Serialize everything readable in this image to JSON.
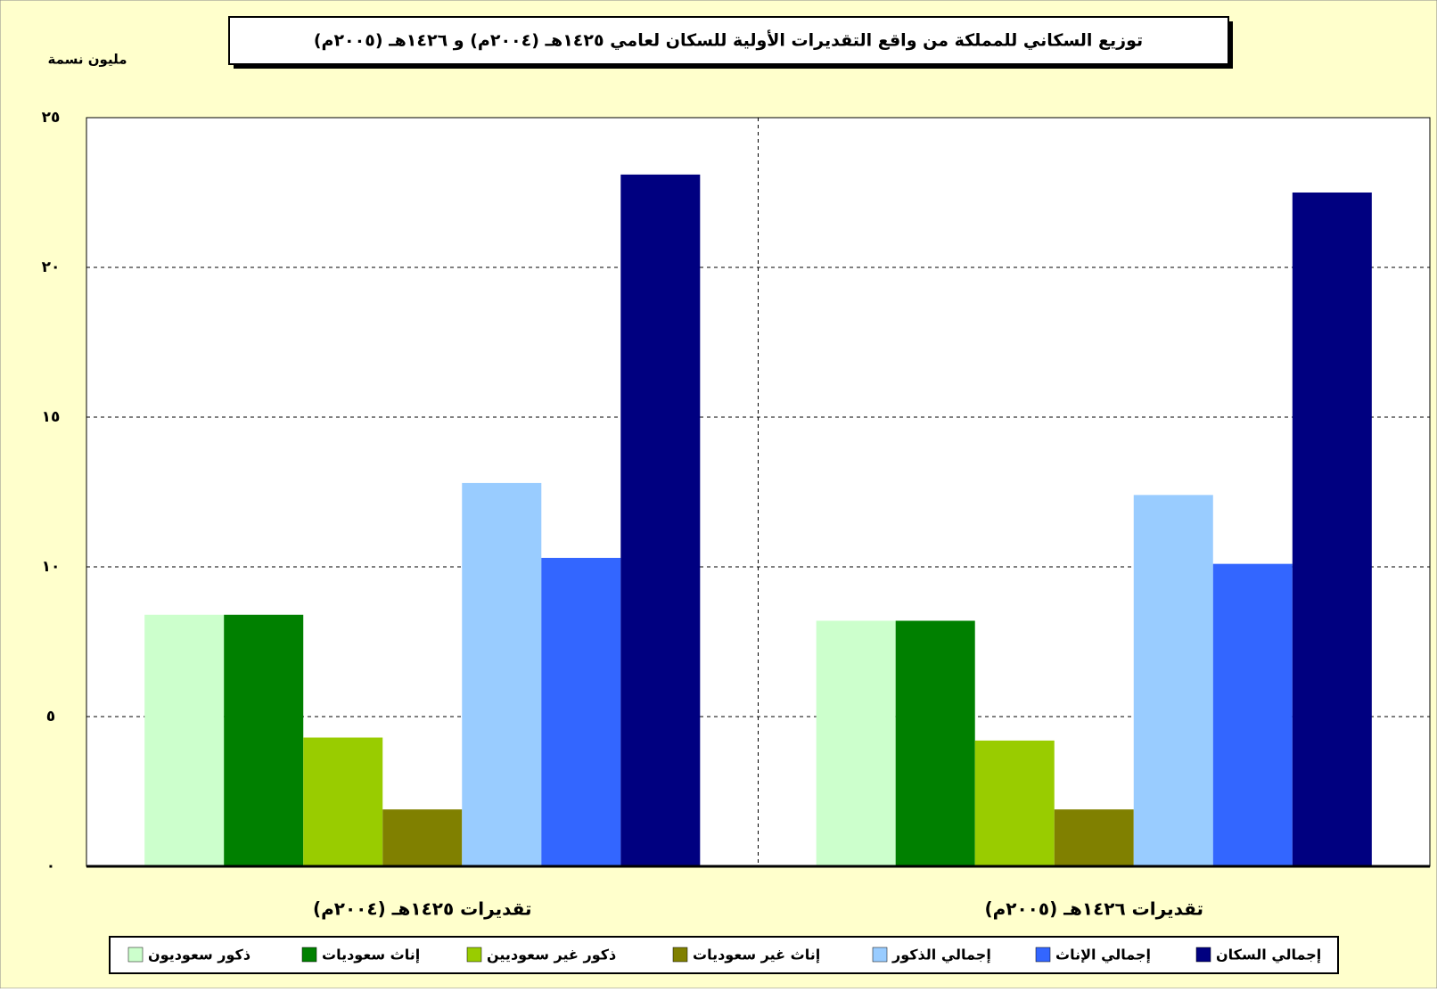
{
  "chart_data": {
    "type": "bar",
    "title": "توزيع السكاني للمملكة من واقع التقديرات الأولية للسكان لعامي ١٤٢٥هـ (٢٠٠٤م) و ١٤٢٦هـ (٢٠٠٥م)",
    "y_label": "مليون نسمة",
    "categories": [
      "تقديرات ١٤٢٥هـ (٢٠٠٤م)",
      "تقديرات ١٤٢٦هـ (٢٠٠٥م)"
    ],
    "series": [
      {
        "name": "ذكور سعوديون",
        "color": "#ccffcc",
        "values": [
          8.4,
          8.2
        ]
      },
      {
        "name": "إناث سعوديات",
        "color": "#008000",
        "values": [
          8.4,
          8.2
        ]
      },
      {
        "name": "ذكور غير سعوديين",
        "color": "#99cc00",
        "values": [
          4.3,
          4.2
        ]
      },
      {
        "name": "إناث غير سعوديات",
        "color": "#808000",
        "values": [
          1.9,
          1.9
        ]
      },
      {
        "name": "إجمالي الذكور",
        "color": "#99ccff",
        "values": [
          12.8,
          12.4
        ]
      },
      {
        "name": "إجمالي الإناث",
        "color": "#3366ff",
        "values": [
          10.3,
          10.1
        ]
      },
      {
        "name": "إجمالي السكان",
        "color": "#000080",
        "values": [
          23.1,
          22.5
        ]
      }
    ],
    "ylim": [
      0,
      25
    ],
    "yticks": [
      {
        "value": 0,
        "label": "٠"
      },
      {
        "value": 5,
        "label": "٥"
      },
      {
        "value": 10,
        "label": "١٠"
      },
      {
        "value": 15,
        "label": "١٥"
      },
      {
        "value": 20,
        "label": "٢٠"
      },
      {
        "value": 25,
        "label": "٢٥"
      }
    ],
    "grid": true,
    "legend": "bottom"
  }
}
